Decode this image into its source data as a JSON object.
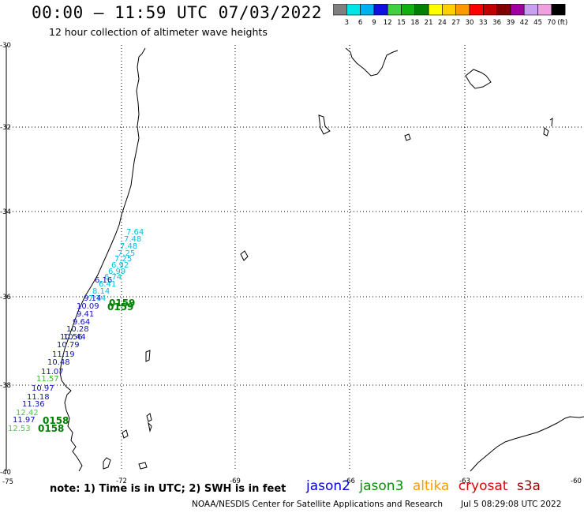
{
  "title": "00:00 – 11:59 UTC 07/03/2022",
  "subtitle": "12 hour collection of altimeter wave heights",
  "colorbar": {
    "labels": [
      "3",
      "6",
      "9",
      "12",
      "15",
      "18",
      "21",
      "24",
      "27",
      "30",
      "33",
      "36",
      "39",
      "42",
      "45",
      "70"
    ],
    "unit": "(ft)",
    "colors": [
      "#7f7f7f",
      "#00e5e5",
      "#00b0f0",
      "#1010e0",
      "#40d040",
      "#10b010",
      "#008000",
      "#ffff00",
      "#ffd000",
      "#ff9900",
      "#ff0000",
      "#c00000",
      "#800000",
      "#a000a0",
      "#c8a0f0",
      "#f0a0e0",
      "#000000"
    ]
  },
  "axes": {
    "lon_labels": [
      "-75",
      "-72",
      "-69",
      "-66",
      "-63",
      "-60"
    ],
    "lat_labels": [
      "-30",
      "-32",
      "-34",
      "-36",
      "-38",
      "-40"
    ]
  },
  "note": "note:  1) Time is in UTC;  2) SWH is in feet",
  "legend": [
    {
      "name": "jason2",
      "color": "#0000dd"
    },
    {
      "name": "jason3",
      "color": "#009000"
    },
    {
      "name": "altika",
      "color": "#ff9900"
    },
    {
      "name": "cryosat",
      "color": "#dd0000"
    },
    {
      "name": "s3a",
      "color": "#990000"
    }
  ],
  "credit": "NOAA/NESDIS Center for Satellite Applications and Research",
  "timestamp": "Jul  5 08:29:08 UTC 2022",
  "observations": {
    "values": [
      {
        "text": "7.64",
        "color": "#00c0e0"
      },
      {
        "text": "7.48",
        "color": "#00c0e0"
      },
      {
        "text": "7.48",
        "color": "#00c0e0"
      },
      {
        "text": "7.25",
        "color": "#00c0e0"
      },
      {
        "text": "7.25",
        "color": "#00c0e0"
      },
      {
        "text": "6.92",
        "color": "#00c0e0"
      },
      {
        "text": "6.99",
        "color": "#00c0e0"
      },
      {
        "text": "6.74",
        "color": "#00c0e0"
      },
      {
        "text": "6.41",
        "color": "#00c0e0"
      },
      {
        "text": "8.14",
        "color": "#00c0e0"
      },
      {
        "text": "6.16",
        "color": "#1010c0"
      },
      {
        "text": "7.74",
        "color": "#00c0e0"
      },
      {
        "text": "9.14",
        "color": "#1010c0"
      },
      {
        "text": "10.09",
        "color": "#1010c0"
      },
      {
        "text": "9.41",
        "color": "#1010c0"
      },
      {
        "text": "9.64",
        "color": "#1010c0"
      },
      {
        "text": "10.28",
        "color": "#1010c0"
      },
      {
        "text": "10.44",
        "color": "#1010c0"
      },
      {
        "text": "10.56",
        "color": "#1010c0"
      },
      {
        "text": "10.79",
        "color": "#1010c0"
      },
      {
        "text": "11.19",
        "color": "#1010c0"
      },
      {
        "text": "10.48",
        "color": "#1010c0"
      },
      {
        "text": "11.07",
        "color": "#1010c0"
      },
      {
        "text": "11.57",
        "color": "#30c030"
      },
      {
        "text": "10.97",
        "color": "#1010c0"
      },
      {
        "text": "11.18",
        "color": "#1010c0"
      },
      {
        "text": "11.36",
        "color": "#1010c0"
      },
      {
        "text": "12.42",
        "color": "#40d040"
      },
      {
        "text": "11.97",
        "color": "#1010c0"
      },
      {
        "text": "12.53",
        "color": "#40d040"
      }
    ],
    "times": [
      {
        "text": "0159",
        "color": "#008000"
      },
      {
        "text": "0159",
        "color": "#008000"
      },
      {
        "text": "0158",
        "color": "#008000"
      },
      {
        "text": "0158",
        "color": "#008000"
      }
    ]
  }
}
